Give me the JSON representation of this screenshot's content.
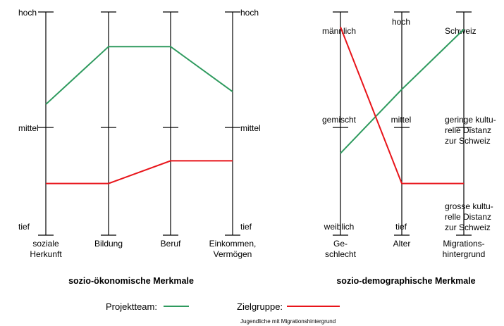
{
  "colors": {
    "projektteam": "#2e9a5e",
    "zielgruppe": "#e8141a",
    "axis": "#000000"
  },
  "chart_data": [
    {
      "type": "line",
      "subtype": "parallel-coordinates",
      "title": "sozio-ökonomische Merkmale",
      "ylim": [
        0,
        2
      ],
      "scale_labels": {
        "left": [
          "tief",
          "mittel",
          "hoch"
        ],
        "right": [
          "tief",
          "mittel",
          "hoch"
        ]
      },
      "axes": [
        {
          "label": [
            "soziale",
            "Herkunft"
          ]
        },
        {
          "label": [
            "Bildung"
          ]
        },
        {
          "label": [
            "Beruf"
          ]
        },
        {
          "label": [
            "Einkommen,",
            "Vermögen"
          ]
        }
      ],
      "series": [
        {
          "name": "Projektteam",
          "values": [
            1.2,
            1.7,
            1.7,
            1.31
          ]
        },
        {
          "name": "Zielgruppe",
          "values": [
            0.48,
            0.48,
            0.69,
            0.69
          ]
        }
      ]
    },
    {
      "type": "line",
      "subtype": "parallel-coordinates",
      "title": "sozio-demographische Merkmale",
      "ylim": [
        0,
        2
      ],
      "axes": [
        {
          "label": [
            "Ge-",
            "schlecht"
          ],
          "levels": [
            "weiblich",
            "gemischt",
            "männlich"
          ]
        },
        {
          "label": [
            "Alter"
          ],
          "levels": [
            "tief",
            "mittel",
            "hoch"
          ]
        },
        {
          "label": [
            "Migrations-",
            "hintergrund"
          ],
          "levels": [
            [
              "grosse kultu-",
              "relle Distanz",
              "zur Schweiz"
            ],
            [
              "geringe kultu-",
              "relle Distanz",
              "zur Schweiz"
            ],
            [
              "Schweiz"
            ]
          ]
        }
      ],
      "series": [
        {
          "name": "Projektteam",
          "values": [
            0.76,
            1.33,
            1.85
          ]
        },
        {
          "name": "Zielgruppe",
          "values": [
            1.87,
            0.48,
            0.48
          ]
        }
      ]
    }
  ],
  "legend": {
    "projektteam_label": "Projektteam:",
    "zielgruppe_label": "Zielgruppe:",
    "zielgruppe_note": "Jugendliche mit Migrationshintergrund"
  }
}
